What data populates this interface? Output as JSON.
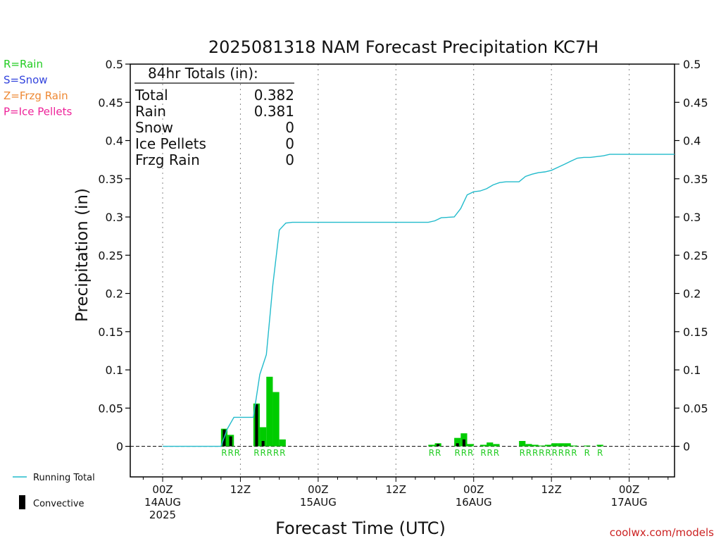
{
  "chart_data": {
    "type": "bar",
    "title": "2025081318 NAM Forecast Precipitation KC7H",
    "xlabel": "Forecast Time (UTC)",
    "ylabel": "Precipitation (in)",
    "ylim": [
      -0.04,
      0.5
    ],
    "xlim_hours": [
      -5,
      79
    ],
    "y_ticks": [
      0,
      0.05,
      0.1,
      0.15,
      0.2,
      0.25,
      0.3,
      0.35,
      0.4,
      0.45,
      0.5
    ],
    "y_tick_labels": [
      "0",
      "0.05",
      "0.1",
      "0.15",
      "0.2",
      "0.25",
      "0.3",
      "0.35",
      "0.4",
      "0.45",
      "0.5"
    ],
    "x_ticks": [
      {
        "hour": 0,
        "line1": "00Z",
        "line2": "14AUG",
        "line3": "2025"
      },
      {
        "hour": 12,
        "line1": "12Z",
        "line2": "",
        "line3": ""
      },
      {
        "hour": 24,
        "line1": "00Z",
        "line2": "15AUG",
        "line3": ""
      },
      {
        "hour": 36,
        "line1": "12Z",
        "line2": "",
        "line3": ""
      },
      {
        "hour": 48,
        "line1": "00Z",
        "line2": "16AUG",
        "line3": ""
      },
      {
        "hour": 60,
        "line1": "12Z",
        "line2": "",
        "line3": ""
      },
      {
        "hour": 72,
        "line1": "00Z",
        "line2": "17AUG",
        "line3": ""
      }
    ],
    "grid": "vertical dotted",
    "precip_type_legend": [
      {
        "label": "R=Rain",
        "color": "#22cc22"
      },
      {
        "label": "S=Snow",
        "color": "#3344dd"
      },
      {
        "label": "Z=Frzg Rain",
        "color": "#ee8833"
      },
      {
        "label": "P=Ice Pellets",
        "color": "#ee2299"
      }
    ],
    "series_legend": [
      {
        "label": "Running Total",
        "color": "#22bbcc"
      },
      {
        "label": "Convective",
        "color": "#000000"
      }
    ],
    "totals": {
      "header": "84hr Totals (in):",
      "rows": [
        {
          "label": "Total",
          "value": "0.382"
        },
        {
          "label": "Rain",
          "value": "0.381"
        },
        {
          "label": "Snow",
          "value": "0"
        },
        {
          "label": "Ice Pellets",
          "value": "0"
        },
        {
          "label": "Frzg Rain",
          "value": "0"
        }
      ]
    },
    "bars": [
      {
        "hour": 10,
        "total": 0.023,
        "convective": 0.022
      },
      {
        "hour": 11,
        "total": 0.015,
        "convective": 0.013
      },
      {
        "hour": 15,
        "total": 0.056,
        "convective": 0.055
      },
      {
        "hour": 16,
        "total": 0.025,
        "convective": 0.007
      },
      {
        "hour": 17,
        "total": 0.091,
        "convective": 0
      },
      {
        "hour": 18,
        "total": 0.071,
        "convective": 0
      },
      {
        "hour": 19,
        "total": 0.009,
        "convective": 0
      },
      {
        "hour": 42,
        "total": 0.002,
        "convective": 0
      },
      {
        "hour": 43,
        "total": 0.004,
        "convective": 0.003
      },
      {
        "hour": 46,
        "total": 0.011,
        "convective": 0.004
      },
      {
        "hour": 47,
        "total": 0.017,
        "convective": 0.009
      },
      {
        "hour": 48,
        "total": 0.003,
        "convective": 0
      },
      {
        "hour": 50,
        "total": 0.002,
        "convective": 0
      },
      {
        "hour": 51,
        "total": 0.005,
        "convective": 0
      },
      {
        "hour": 52,
        "total": 0.003,
        "convective": 0
      },
      {
        "hour": 56,
        "total": 0.007,
        "convective": 0
      },
      {
        "hour": 57,
        "total": 0.003,
        "convective": 0
      },
      {
        "hour": 58,
        "total": 0.002,
        "convective": 0
      },
      {
        "hour": 59,
        "total": 0.001,
        "convective": 0
      },
      {
        "hour": 60,
        "total": 0.002,
        "convective": 0
      },
      {
        "hour": 61,
        "total": 0.004,
        "convective": 0
      },
      {
        "hour": 62,
        "total": 0.004,
        "convective": 0
      },
      {
        "hour": 63,
        "total": 0.004,
        "convective": 0
      },
      {
        "hour": 64,
        "total": 0.001,
        "convective": 0
      },
      {
        "hour": 66,
        "total": 0.001,
        "convective": 0
      },
      {
        "hour": 68,
        "total": 0.002,
        "convective": 0
      }
    ],
    "type_markers": [
      {
        "hour": 10,
        "code": "R"
      },
      {
        "hour": 11,
        "code": "R"
      },
      {
        "hour": 12,
        "code": "R"
      },
      {
        "hour": 15,
        "code": "R"
      },
      {
        "hour": 16,
        "code": "R"
      },
      {
        "hour": 17,
        "code": "R"
      },
      {
        "hour": 18,
        "code": "R"
      },
      {
        "hour": 19,
        "code": "R"
      },
      {
        "hour": 42,
        "code": "R"
      },
      {
        "hour": 43,
        "code": "R"
      },
      {
        "hour": 46,
        "code": "R"
      },
      {
        "hour": 47,
        "code": "R"
      },
      {
        "hour": 48,
        "code": "R"
      },
      {
        "hour": 50,
        "code": "R"
      },
      {
        "hour": 51,
        "code": "R"
      },
      {
        "hour": 52,
        "code": "R"
      },
      {
        "hour": 56,
        "code": "R"
      },
      {
        "hour": 57,
        "code": "R"
      },
      {
        "hour": 58,
        "code": "R"
      },
      {
        "hour": 59,
        "code": "R"
      },
      {
        "hour": 60,
        "code": "R"
      },
      {
        "hour": 61,
        "code": "R"
      },
      {
        "hour": 62,
        "code": "R"
      },
      {
        "hour": 63,
        "code": "R"
      },
      {
        "hour": 64,
        "code": "R"
      },
      {
        "hour": 66,
        "code": "R"
      },
      {
        "hour": 68,
        "code": "R"
      }
    ],
    "running_total": [
      {
        "hour": 0,
        "value": 0
      },
      {
        "hour": 9,
        "value": 0
      },
      {
        "hour": 10,
        "value": 0.023
      },
      {
        "hour": 11,
        "value": 0.038
      },
      {
        "hour": 14,
        "value": 0.038
      },
      {
        "hour": 15,
        "value": 0.094
      },
      {
        "hour": 16,
        "value": 0.12
      },
      {
        "hour": 17,
        "value": 0.211
      },
      {
        "hour": 18,
        "value": 0.283
      },
      {
        "hour": 19,
        "value": 0.292
      },
      {
        "hour": 20,
        "value": 0.293
      },
      {
        "hour": 41,
        "value": 0.293
      },
      {
        "hour": 42,
        "value": 0.295
      },
      {
        "hour": 43,
        "value": 0.299
      },
      {
        "hour": 45,
        "value": 0.3
      },
      {
        "hour": 46,
        "value": 0.311
      },
      {
        "hour": 47,
        "value": 0.329
      },
      {
        "hour": 48,
        "value": 0.333
      },
      {
        "hour": 49,
        "value": 0.334
      },
      {
        "hour": 50,
        "value": 0.337
      },
      {
        "hour": 51,
        "value": 0.342
      },
      {
        "hour": 52,
        "value": 0.345
      },
      {
        "hour": 53,
        "value": 0.346
      },
      {
        "hour": 55,
        "value": 0.346
      },
      {
        "hour": 56,
        "value": 0.353
      },
      {
        "hour": 57,
        "value": 0.356
      },
      {
        "hour": 58,
        "value": 0.358
      },
      {
        "hour": 59,
        "value": 0.359
      },
      {
        "hour": 60,
        "value": 0.361
      },
      {
        "hour": 61,
        "value": 0.365
      },
      {
        "hour": 62,
        "value": 0.369
      },
      {
        "hour": 63,
        "value": 0.373
      },
      {
        "hour": 64,
        "value": 0.377
      },
      {
        "hour": 65,
        "value": 0.378
      },
      {
        "hour": 66,
        "value": 0.378
      },
      {
        "hour": 67,
        "value": 0.379
      },
      {
        "hour": 68,
        "value": 0.38
      },
      {
        "hour": 69,
        "value": 0.382
      },
      {
        "hour": 79,
        "value": 0.382
      }
    ],
    "colors": {
      "rain_bar": "#00cc00",
      "convective_bar": "#000000",
      "running_total": "#22bbcc",
      "marker_text": "#22cc22"
    },
    "credit": "coolwx.com/models"
  }
}
